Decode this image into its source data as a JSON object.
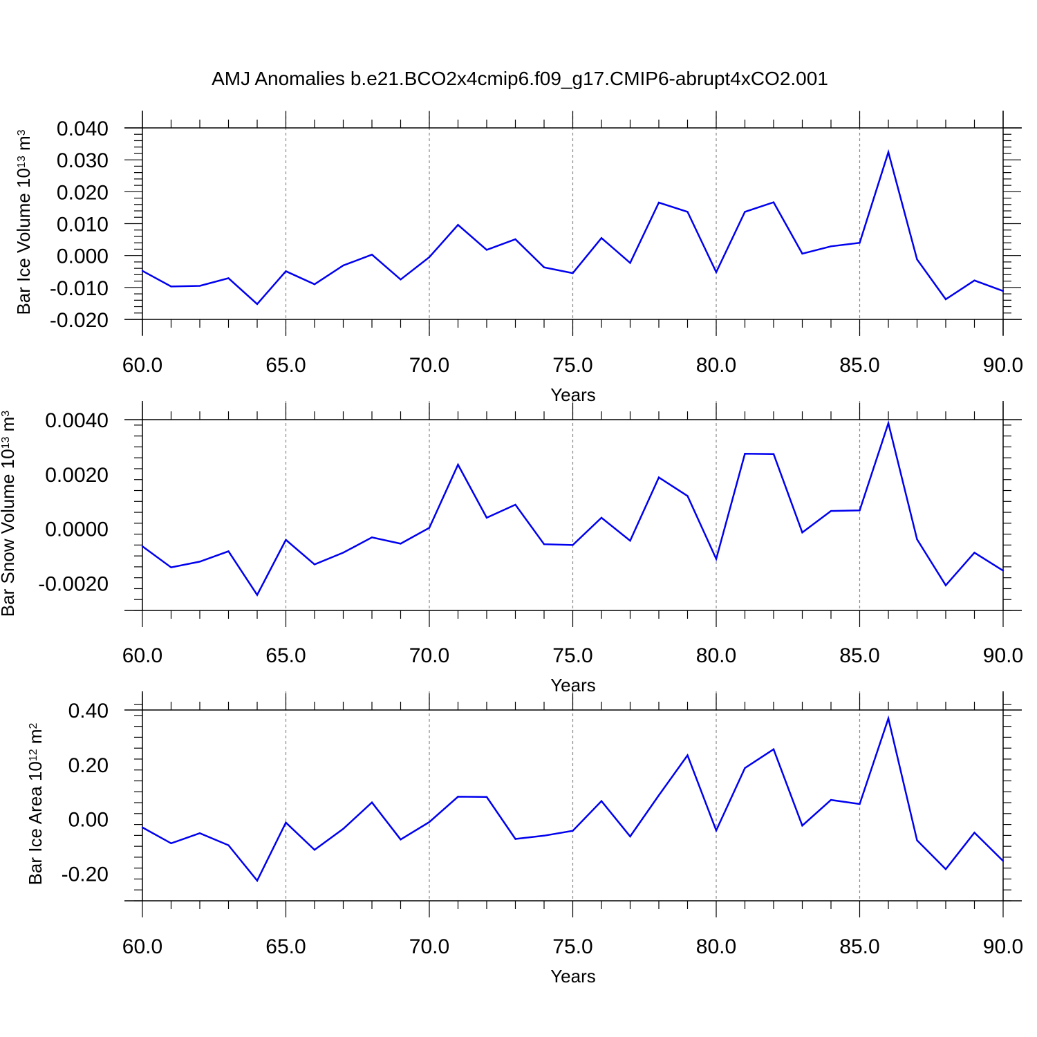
{
  "title": "AMJ Anomalies b.e21.BCO2x4cmip6.f09_g17.CMIP6-abrupt4xCO2.001",
  "colors": {
    "line": "#0000ee",
    "axis": "#000000",
    "grid": "#888888"
  },
  "chart_data": [
    {
      "type": "line",
      "xlabel": "Years",
      "ylabel": {
        "main": "Bar Ice Volume 10",
        "exp": "13",
        "unit": " m",
        "unit_exp": "3"
      },
      "xlim": [
        60,
        90
      ],
      "ylim": [
        -0.02,
        0.04
      ],
      "xticks": [
        60,
        65,
        70,
        75,
        80,
        85,
        90
      ],
      "xtick_labels": [
        "60.0",
        "65.0",
        "70.0",
        "75.0",
        "80.0",
        "85.0",
        "90.0"
      ],
      "yticks": [
        -0.02,
        -0.01,
        0.0,
        0.01,
        0.02,
        0.03,
        0.04
      ],
      "ytick_labels": [
        "-0.020",
        "-0.010",
        "0.000",
        "0.010",
        "0.020",
        "0.030",
        "0.040"
      ],
      "grid": "vertical dashed",
      "x": [
        60,
        61,
        62,
        63,
        64,
        65,
        66,
        67,
        68,
        69,
        70,
        71,
        72,
        73,
        74,
        75,
        76,
        77,
        78,
        79,
        80,
        81,
        82,
        83,
        84,
        85,
        86,
        87,
        88,
        89,
        90
      ],
      "y": [
        -0.0048,
        -0.0097,
        -0.0095,
        -0.0071,
        -0.0152,
        -0.0049,
        -0.009,
        -0.0031,
        0.0003,
        -0.0075,
        -0.0005,
        0.0096,
        0.0018,
        0.0051,
        -0.0037,
        -0.0055,
        0.0055,
        -0.0023,
        0.0166,
        0.0137,
        -0.0052,
        0.0137,
        0.0167,
        0.0006,
        0.0029,
        0.004,
        0.0324,
        -0.0012,
        -0.0137,
        -0.0078,
        -0.0111
      ]
    },
    {
      "type": "line",
      "xlabel": "Years",
      "ylabel": {
        "main": "Bar Snow Volume 10",
        "exp": "13",
        "unit": " m",
        "unit_exp": "3"
      },
      "xlim": [
        60,
        90
      ],
      "ylim": [
        -0.003,
        0.004
      ],
      "xticks": [
        60,
        65,
        70,
        75,
        80,
        85,
        90
      ],
      "xtick_labels": [
        "60.0",
        "65.0",
        "70.0",
        "75.0",
        "80.0",
        "85.0",
        "90.0"
      ],
      "yticks": [
        -0.002,
        0.0,
        0.002,
        0.004
      ],
      "ytick_labels": [
        "-0.0020",
        "0.0000",
        "0.0020",
        "0.0040"
      ],
      "grid": "vertical dashed",
      "x": [
        60,
        61,
        62,
        63,
        64,
        65,
        66,
        67,
        68,
        69,
        70,
        71,
        72,
        73,
        74,
        75,
        76,
        77,
        78,
        79,
        80,
        81,
        82,
        83,
        84,
        85,
        86,
        87,
        88,
        89,
        90
      ],
      "y": [
        -0.00065,
        -0.00142,
        -0.00121,
        -0.00083,
        -0.00243,
        -0.00041,
        -0.00131,
        -0.00088,
        -0.00032,
        -0.00055,
        3e-05,
        0.00235,
        0.0004,
        0.00088,
        -0.00057,
        -0.0006,
        0.0004,
        -0.00044,
        0.00188,
        0.0012,
        -0.00111,
        0.00275,
        0.00274,
        -0.00014,
        0.00065,
        0.00067,
        0.00387,
        -0.00039,
        -0.00208,
        -0.00088,
        -0.00154
      ]
    },
    {
      "type": "line",
      "xlabel": "Years",
      "ylabel": {
        "main": "Bar Ice Area 10",
        "exp": "12",
        "unit": " m",
        "unit_exp": "2"
      },
      "xlim": [
        60,
        90
      ],
      "ylim": [
        -0.3,
        0.4
      ],
      "xticks": [
        60,
        65,
        70,
        75,
        80,
        85,
        90
      ],
      "xtick_labels": [
        "60.0",
        "65.0",
        "70.0",
        "75.0",
        "80.0",
        "85.0",
        "90.0"
      ],
      "yticks": [
        -0.2,
        0.0,
        0.2,
        0.4
      ],
      "ytick_labels": [
        "-0.20",
        "0.00",
        "0.20",
        "0.40"
      ],
      "grid": "vertical dashed",
      "x": [
        60,
        61,
        62,
        63,
        64,
        65,
        66,
        67,
        68,
        69,
        70,
        71,
        72,
        73,
        74,
        75,
        76,
        77,
        78,
        79,
        80,
        81,
        82,
        83,
        84,
        85,
        86,
        87,
        88,
        89,
        90
      ],
      "y": [
        -0.031,
        -0.089,
        -0.052,
        -0.096,
        -0.226,
        -0.013,
        -0.113,
        -0.036,
        0.061,
        -0.075,
        -0.011,
        0.082,
        0.081,
        -0.073,
        -0.061,
        -0.043,
        0.066,
        -0.064,
        0.087,
        0.234,
        -0.042,
        0.187,
        0.256,
        -0.024,
        0.07,
        0.055,
        0.369,
        -0.078,
        -0.184,
        -0.05,
        -0.154
      ]
    }
  ]
}
